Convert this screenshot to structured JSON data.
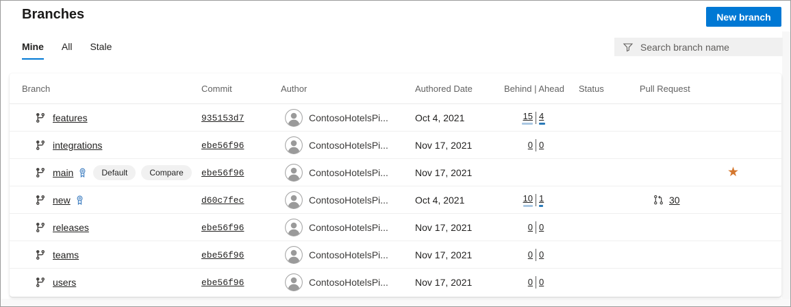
{
  "page": {
    "title": "Branches",
    "new_branch_button": "New branch",
    "tabs": [
      {
        "label": "Mine",
        "active": true
      },
      {
        "label": "All",
        "active": false
      },
      {
        "label": "Stale",
        "active": false
      }
    ],
    "search_placeholder": "Search branch name"
  },
  "table": {
    "columns": [
      "Branch",
      "Commit",
      "Author",
      "Authored Date",
      "Behind | Ahead",
      "Status",
      "Pull Request"
    ],
    "rows": [
      {
        "name": "features",
        "commit": "935153d7",
        "author": "ContosoHotelsPi...",
        "date": "Oct 4, 2021",
        "behind": "15",
        "ahead": "4",
        "behind_bar": 16,
        "ahead_bar": 9,
        "ribbon": false,
        "badges": [],
        "pr": "",
        "favorite": false
      },
      {
        "name": "integrations",
        "commit": "ebe56f96",
        "author": "ContosoHotelsPi...",
        "date": "Nov 17, 2021",
        "behind": "0",
        "ahead": "0",
        "behind_bar": 0,
        "ahead_bar": 0,
        "ribbon": false,
        "badges": [],
        "pr": "",
        "favorite": false
      },
      {
        "name": "main",
        "commit": "ebe56f96",
        "author": "ContosoHotelsPi...",
        "date": "Nov 17, 2021",
        "behind": "",
        "ahead": "",
        "behind_bar": 0,
        "ahead_bar": 0,
        "ribbon": true,
        "badges": [
          "Default",
          "Compare"
        ],
        "pr": "",
        "favorite": true
      },
      {
        "name": "new",
        "commit": "d60c7fec",
        "author": "ContosoHotelsPi...",
        "date": "Oct 4, 2021",
        "behind": "10",
        "ahead": "1",
        "behind_bar": 14,
        "ahead_bar": 6,
        "ribbon": true,
        "badges": [],
        "pr": "30",
        "favorite": false
      },
      {
        "name": "releases",
        "commit": "ebe56f96",
        "author": "ContosoHotelsPi...",
        "date": "Nov 17, 2021",
        "behind": "0",
        "ahead": "0",
        "behind_bar": 0,
        "ahead_bar": 0,
        "ribbon": false,
        "badges": [],
        "pr": "",
        "favorite": false
      },
      {
        "name": "teams",
        "commit": "ebe56f96",
        "author": "ContosoHotelsPi...",
        "date": "Nov 17, 2021",
        "behind": "0",
        "ahead": "0",
        "behind_bar": 0,
        "ahead_bar": 0,
        "ribbon": false,
        "badges": [],
        "pr": "",
        "favorite": false
      },
      {
        "name": "users",
        "commit": "ebe56f96",
        "author": "ContosoHotelsPi...",
        "date": "Nov 17, 2021",
        "behind": "0",
        "ahead": "0",
        "behind_bar": 0,
        "ahead_bar": 0,
        "ribbon": false,
        "badges": [],
        "pr": "",
        "favorite": false
      }
    ]
  },
  "icons": {
    "filter": "funnel-icon",
    "branch": "git-branch-icon",
    "policy": "ribbon-badge-icon",
    "pull_request": "pull-request-icon",
    "favorite": "star-icon",
    "avatar": "person-avatar-icon"
  },
  "colors": {
    "accent": "#0078d4",
    "favorite_star": "#d4772e",
    "behind_bar": "#a9c7e2",
    "ahead_bar": "#2a7ab9"
  }
}
